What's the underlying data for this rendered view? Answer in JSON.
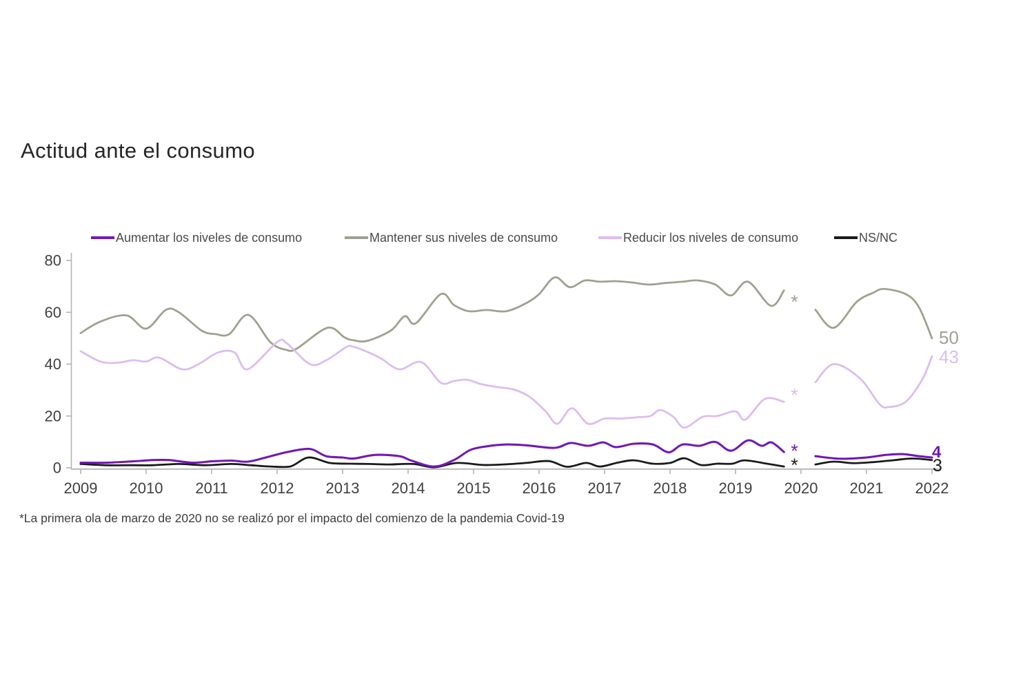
{
  "footnote": "*La primera ola de marzo de 2020 no se realizó por el impacto del comienzo de la pandemia Covid-19",
  "colors": {
    "aumentar": "#7119B5",
    "mantener": "#A0A091",
    "reducir": "#DCBDEE",
    "nsnc": "#1A1A1A",
    "axis": "#B4B4B4",
    "tick_text": "#3F3F3F"
  },
  "chart_data": {
    "type": "line",
    "title": "Actitud ante el consumo",
    "xlabel": "",
    "ylabel": "",
    "xlim": [
      2009,
      2022
    ],
    "ylim": [
      0,
      80
    ],
    "x_ticks": [
      2009,
      2010,
      2011,
      2012,
      2013,
      2014,
      2015,
      2016,
      2017,
      2018,
      2019,
      2020,
      2021,
      2022
    ],
    "y_ticks": [
      0,
      20,
      40,
      60,
      80
    ],
    "grid": false,
    "legend_position": "top",
    "gap": {
      "x": 2019.9,
      "marker": "*",
      "meaning": "ola de marzo de 2020 no realizada"
    },
    "series": [
      {
        "id": "aumentar",
        "name": "Aumentar los niveles de consumo",
        "color": "#7119B5",
        "end_label": "4",
        "gap_asterisk_y": 6.5,
        "segments": [
          {
            "x": [
              2009.0,
              2009.4,
              2009.8,
              2010.1,
              2010.35,
              2010.7,
              2011.0,
              2011.3,
              2011.56,
              2011.9,
              2012.14,
              2012.4,
              2012.55,
              2012.75,
              2013.0,
              2013.17,
              2013.5,
              2013.87,
              2014.05,
              2014.4,
              2014.7,
              2014.95,
              2015.2,
              2015.5,
              2015.8,
              2016.24,
              2016.48,
              2016.75,
              2016.98,
              2017.17,
              2017.45,
              2017.74,
              2017.98,
              2018.19,
              2018.45,
              2018.69,
              2018.93,
              2019.19,
              2019.4,
              2019.55,
              2019.74
            ],
            "y": [
              2,
              2,
              2.5,
              3,
              3,
              2,
              2.5,
              2.8,
              2.4,
              4.5,
              6,
              7.2,
              7,
              4.5,
              4,
              3.6,
              5,
              4.5,
              2.8,
              0.5,
              3,
              6.9,
              8.3,
              9,
              8.7,
              7.7,
              9.6,
              8.5,
              9.8,
              8,
              9.3,
              9,
              6,
              9,
              8.5,
              10,
              6.6,
              10.6,
              8.5,
              9.8,
              6.1
            ]
          },
          {
            "x": [
              2020.22,
              2020.6,
              2021.0,
              2021.3,
              2021.55,
              2021.8,
              2022.0
            ],
            "y": [
              4.5,
              3.5,
              4,
              5,
              5.3,
              4.5,
              4
            ]
          }
        ]
      },
      {
        "id": "mantener",
        "name": "Mantener sus niveles de consumo",
        "color": "#A0A091",
        "end_label": "50",
        "gap_asterisk_y": 64,
        "segments": [
          {
            "x": [
              2009.0,
              2009.3,
              2009.7,
              2010.0,
              2010.3,
              2010.5,
              2010.85,
              2011.06,
              2011.27,
              2011.56,
              2011.9,
              2012.14,
              2012.3,
              2012.77,
              2013.03,
              2013.17,
              2013.38,
              2013.74,
              2013.95,
              2014.12,
              2014.5,
              2014.7,
              2014.93,
              2015.2,
              2015.5,
              2015.8,
              2016.0,
              2016.24,
              2016.47,
              2016.7,
              2016.93,
              2017.17,
              2017.42,
              2017.68,
              2017.93,
              2018.19,
              2018.42,
              2018.69,
              2018.93,
              2019.19,
              2019.54,
              2019.74
            ],
            "y": [
              52,
              56.4,
              58.8,
              53.7,
              60.9,
              60,
              52.9,
              51.6,
              51.6,
              59,
              48.4,
              45.5,
              46,
              54,
              50.3,
              49.2,
              49,
              53,
              58.5,
              55.8,
              67,
              62.8,
              60.4,
              60.9,
              60.4,
              63.5,
              67,
              73.5,
              69.7,
              72.3,
              71.8,
              72,
              71.5,
              70.7,
              71.3,
              71.8,
              72.3,
              70.7,
              66.5,
              71.8,
              62.5,
              68.4
            ]
          },
          {
            "x": [
              2020.22,
              2020.5,
              2020.85,
              2021.1,
              2021.27,
              2021.6,
              2021.8,
              2022.0
            ],
            "y": [
              61,
              54,
              64,
              67.5,
              69,
              67,
              62,
              50
            ]
          }
        ]
      },
      {
        "id": "reducir",
        "name": "Reducir los niveles de consumo",
        "color": "#DCBDEE",
        "end_label": "43",
        "gap_asterisk_y": 28,
        "segments": [
          {
            "x": [
              2009.0,
              2009.3,
              2009.55,
              2009.8,
              2010.0,
              2010.2,
              2010.55,
              2010.8,
              2011.1,
              2011.35,
              2011.55,
              2012.0,
              2012.15,
              2012.5,
              2012.75,
              2013.05,
              2013.15,
              2013.4,
              2013.6,
              2013.87,
              2014.2,
              2014.5,
              2014.7,
              2014.9,
              2015.1,
              2015.35,
              2015.6,
              2015.85,
              2016.1,
              2016.28,
              2016.5,
              2016.75,
              2017.0,
              2017.25,
              2017.5,
              2017.7,
              2017.85,
              2018.05,
              2018.22,
              2018.5,
              2018.72,
              2019.0,
              2019.15,
              2019.45,
              2019.74
            ],
            "y": [
              45,
              41,
              40.5,
              41.5,
              41,
              42.5,
              38,
              40,
              44.5,
              44.5,
              38,
              48.5,
              48,
              40,
              41.5,
              46.5,
              46.8,
              44.5,
              42,
              38,
              40.8,
              32.8,
              33.5,
              34,
              32.4,
              31.2,
              30.3,
              27.5,
              21.8,
              17,
              23,
              17,
              19,
              19,
              19.5,
              20,
              22.3,
              19.7,
              15.5,
              19.7,
              20,
              21.8,
              18.6,
              26.6,
              25.5
            ]
          },
          {
            "x": [
              2020.22,
              2020.5,
              2020.9,
              2021.2,
              2021.35,
              2021.6,
              2021.85,
              2022.0
            ],
            "y": [
              33,
              40,
              34.5,
              24.5,
              23.5,
              25.5,
              34,
              43
            ]
          }
        ]
      },
      {
        "id": "nsnc",
        "name": "NS/NC",
        "color": "#1A1A1A",
        "end_label": "3",
        "gap_asterisk_y": 1,
        "segments": [
          {
            "x": [
              2009.0,
              2009.4,
              2009.8,
              2010.1,
              2010.5,
              2010.9,
              2011.3,
              2011.6,
              2011.9,
              2012.2,
              2012.48,
              2012.8,
              2013.1,
              2013.4,
              2013.7,
              2014.08,
              2014.4,
              2014.75,
              2015.15,
              2015.45,
              2015.8,
              2016.15,
              2016.43,
              2016.72,
              2016.93,
              2017.2,
              2017.45,
              2017.74,
              2018.0,
              2018.22,
              2018.47,
              2018.72,
              2018.95,
              2019.14,
              2019.48,
              2019.74
            ],
            "y": [
              1.5,
              1,
              1,
              1,
              1.5,
              1,
              1.5,
              1,
              0.5,
              0.5,
              4,
              1.9,
              1.6,
              1.5,
              1.3,
              1.5,
              0.2,
              1.9,
              1.1,
              1.3,
              1.9,
              2.6,
              0.4,
              1.9,
              0.5,
              2,
              2.9,
              1.6,
              1.9,
              3.7,
              1.1,
              1.6,
              1.6,
              2.9,
              1.6,
              0.5
            ]
          },
          {
            "x": [
              2020.22,
              2020.5,
              2020.8,
              2021.1,
              2021.4,
              2021.7,
              2022.0
            ],
            "y": [
              1.3,
              2.4,
              1.8,
              2.2,
              2.9,
              3.6,
              3
            ]
          }
        ]
      }
    ]
  }
}
